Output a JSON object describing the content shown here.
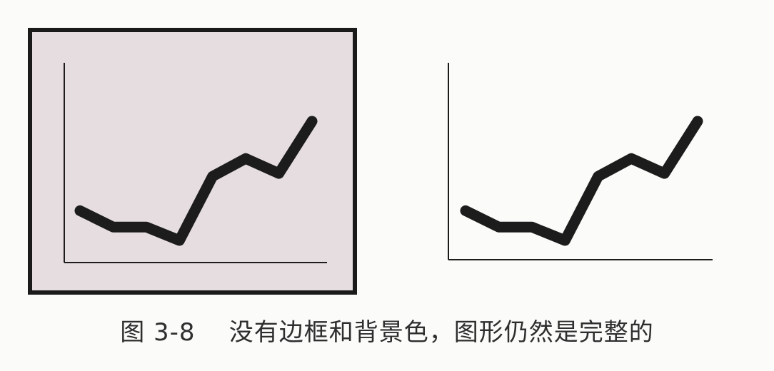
{
  "caption": "图 3-8    没有边框和背景色，图形仍然是完整的",
  "colors": {
    "panel_background": "#e6dde0",
    "panel_border": "#1a1a1a",
    "line": "#1c1c1c",
    "axis": "#1c1c1c"
  },
  "chart_data": [
    {
      "type": "line",
      "border": true,
      "background": true,
      "grid": false,
      "title": "",
      "xlabel": "",
      "ylabel": "",
      "x": [
        1,
        2,
        3,
        4,
        5,
        6,
        7,
        8
      ],
      "series": [
        {
          "values": [
            4.0,
            2.9,
            2.9,
            2.0,
            6.3,
            7.5,
            6.5,
            10.0
          ]
        }
      ]
    },
    {
      "type": "line",
      "border": false,
      "background": false,
      "grid": false,
      "title": "",
      "xlabel": "",
      "ylabel": "",
      "x": [
        1,
        2,
        3,
        4,
        5,
        6,
        7,
        8
      ],
      "series": [
        {
          "values": [
            4.0,
            2.9,
            2.9,
            2.0,
            6.3,
            7.5,
            6.5,
            10.0
          ]
        }
      ]
    }
  ]
}
